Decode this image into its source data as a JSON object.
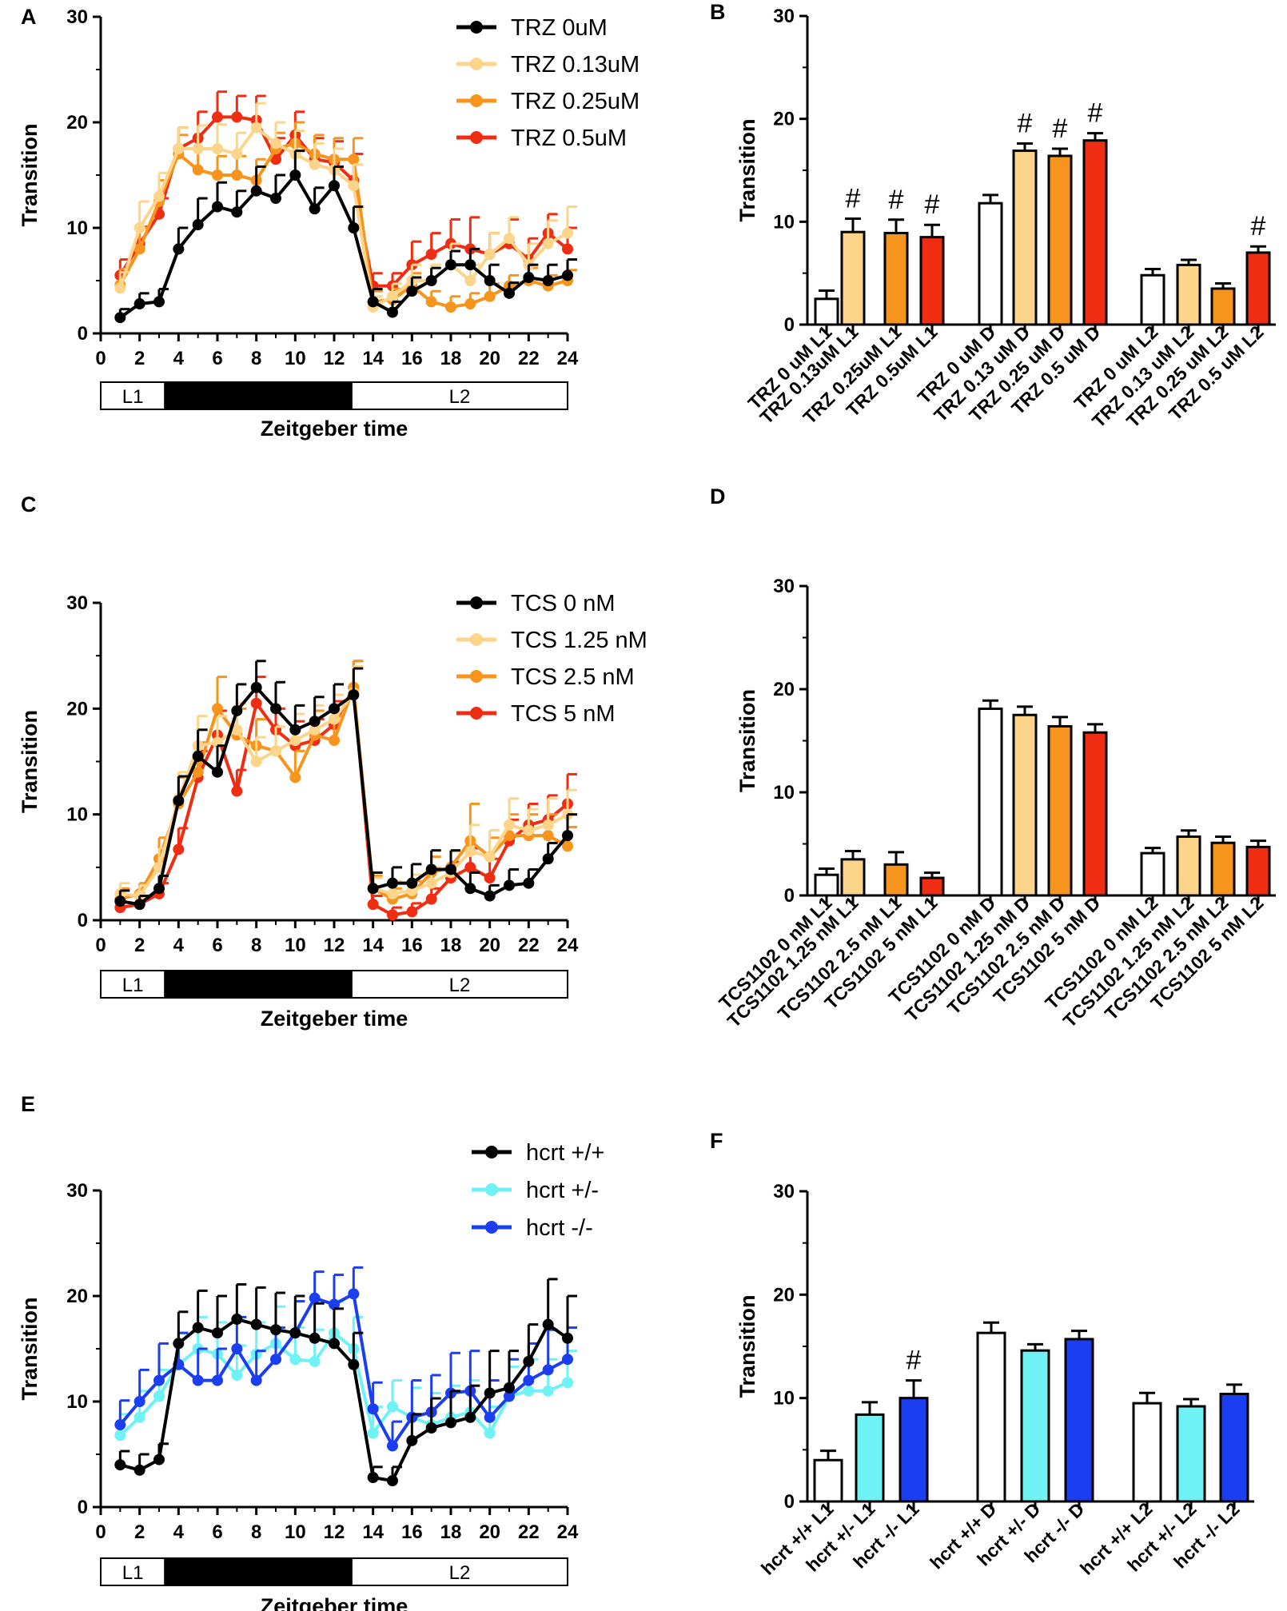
{
  "colors": {
    "black": "#000000",
    "pale": "#fcd58b",
    "orange": "#f7941d",
    "red": "#ee2d12",
    "cyan": "#6ff2f5",
    "blue": "#1a3ef0",
    "white": "#ffffff"
  },
  "line_common": {
    "x_ticks": [
      "0",
      "2",
      "4",
      "6",
      "8",
      "10",
      "12",
      "14",
      "16",
      "18",
      "20",
      "22",
      "24"
    ],
    "y_ticks": [
      "0",
      "10",
      "20",
      "30"
    ],
    "xlim": [
      0,
      24
    ],
    "ylim": [
      0,
      30
    ],
    "ylabel": "Transition",
    "xlabel": "Zeitgeber time",
    "phases": [
      {
        "label": "L1",
        "start": 0,
        "end": 3.3,
        "fill": "white"
      },
      {
        "label": "D",
        "start": 3.3,
        "end": 12.9,
        "fill": "black"
      },
      {
        "label": "L2",
        "start": 12.9,
        "end": 24,
        "fill": "white"
      }
    ]
  },
  "chart_data": [
    {
      "panel": "A",
      "type": "line",
      "xlabel": "Zeitgeber time",
      "ylabel": "Transition",
      "ylim": [
        0,
        30
      ],
      "xlim": [
        0,
        24
      ],
      "x": [
        1,
        2,
        3,
        4,
        5,
        6,
        7,
        8,
        9,
        10,
        11,
        12,
        13,
        14,
        15,
        16,
        17,
        18,
        19,
        20,
        21,
        22,
        23,
        24
      ],
      "series": [
        {
          "name": "TRZ 0.5uM",
          "color": "red",
          "values": [
            5.5,
            8.5,
            11.3,
            17.5,
            18.5,
            20.5,
            20.5,
            20.2,
            16.5,
            18.8,
            16.5,
            16.2,
            14.5,
            4.5,
            4.5,
            6.5,
            7.5,
            8.5,
            8.0,
            7.5,
            8.5,
            7.0,
            9.5,
            8.0
          ],
          "err": [
            1.5,
            1.6,
            1.5,
            2.0,
            2.5,
            2.4,
            2.0,
            2.3,
            2.0,
            2.2,
            2.0,
            2.0,
            2.5,
            1.2,
            1.2,
            2.2,
            2.0,
            2.3,
            3.0,
            2.0,
            2.3,
            2.0,
            1.8,
            2.0
          ]
        },
        {
          "name": "TRZ 0.25uM",
          "color": "orange",
          "values": [
            4.6,
            8.0,
            12.5,
            17.0,
            15.5,
            15.0,
            15.0,
            14.5,
            17.5,
            18.0,
            17.0,
            16.5,
            16.5,
            3.0,
            3.2,
            4.5,
            3.0,
            2.5,
            2.8,
            3.5,
            4.5,
            5.0,
            4.5,
            5.0
          ],
          "err": [
            1.5,
            2.0,
            2.0,
            1.8,
            2.0,
            1.8,
            1.8,
            2.0,
            1.5,
            2.0,
            1.8,
            2.0,
            2.0,
            1.0,
            1.0,
            1.2,
            1.0,
            1.0,
            1.0,
            1.2,
            1.0,
            1.2,
            1.0,
            1.0
          ]
        },
        {
          "name": "TRZ 0.13uM",
          "color": "pale",
          "values": [
            4.3,
            10.0,
            13.0,
            17.5,
            17.5,
            17.5,
            17.0,
            19.5,
            18.0,
            17.0,
            16.0,
            15.5,
            14.0,
            2.5,
            3.5,
            5.0,
            5.0,
            6.5,
            5.0,
            7.5,
            9.0,
            6.5,
            8.5,
            9.5
          ],
          "err": [
            1.5,
            2.5,
            2.2,
            2.0,
            2.2,
            2.3,
            2.0,
            2.3,
            2.0,
            2.2,
            2.0,
            2.0,
            2.0,
            1.0,
            1.2,
            1.5,
            1.5,
            2.0,
            1.5,
            2.0,
            2.0,
            2.0,
            2.2,
            2.5
          ]
        },
        {
          "name": "TRZ 0uM",
          "color": "black",
          "values": [
            1.5,
            2.8,
            3.0,
            8.0,
            10.3,
            12.0,
            11.5,
            13.5,
            12.8,
            15.0,
            11.8,
            14.0,
            10.0,
            3.0,
            2.0,
            4.0,
            5.0,
            6.5,
            6.5,
            5.0,
            3.8,
            5.3,
            5.0,
            5.5
          ],
          "err": [
            0.8,
            1.0,
            1.2,
            2.0,
            2.5,
            2.3,
            2.0,
            2.3,
            2.2,
            2.3,
            2.0,
            1.8,
            2.0,
            1.2,
            1.0,
            1.3,
            1.2,
            1.3,
            1.5,
            1.5,
            1.0,
            1.2,
            1.5,
            1.5
          ]
        }
      ],
      "legend": [
        "TRZ 0uM",
        "TRZ 0.13uM",
        "TRZ 0.25uM",
        "TRZ 0.5uM"
      ],
      "legend_colors": [
        "black",
        "pale",
        "orange",
        "red"
      ]
    },
    {
      "panel": "B",
      "type": "bar",
      "ylabel": "Transition",
      "ylim": [
        0,
        30
      ],
      "y_ticks": [
        "0",
        "10",
        "20",
        "30"
      ],
      "categories": [
        "TRZ 0 uM L1",
        "TRZ 0.13uM L1",
        "TRZ 0.25uM L1",
        "TRZ 0.5uM L1",
        "TRZ 0 uM D",
        "TRZ 0.13 uM D",
        "TRZ 0.25 uM D",
        "TRZ 0.5 uM D",
        "TRZ 0 uM L2",
        "TRZ 0.13 uM L2",
        "TRZ 0.25 uM L2",
        "TRZ 0.5 uM L2"
      ],
      "values": [
        2.5,
        9.0,
        8.9,
        8.5,
        11.8,
        16.9,
        16.4,
        17.9,
        4.8,
        5.8,
        3.5,
        7.0
      ],
      "err": [
        0.8,
        1.3,
        1.3,
        1.2,
        0.8,
        0.7,
        0.7,
        0.7,
        0.6,
        0.5,
        0.5,
        0.6
      ],
      "colors": [
        "white",
        "pale",
        "orange",
        "red",
        "white",
        "pale",
        "orange",
        "red",
        "white",
        "pale",
        "orange",
        "red"
      ],
      "annotations": [
        "",
        "#",
        "#",
        "#",
        "",
        "#",
        "#",
        "#",
        "",
        "",
        "",
        "#"
      ]
    },
    {
      "panel": "C",
      "type": "line",
      "xlabel": "Zeitgeber time",
      "ylabel": "Transition",
      "ylim": [
        0,
        30
      ],
      "xlim": [
        0,
        24
      ],
      "x": [
        1,
        2,
        3,
        4,
        5,
        6,
        7,
        8,
        9,
        10,
        11,
        12,
        13,
        14,
        15,
        16,
        17,
        18,
        19,
        20,
        21,
        22,
        23,
        24
      ],
      "series": [
        {
          "name": "TCS 5 nM",
          "color": "red",
          "values": [
            1.2,
            1.5,
            2.5,
            6.7,
            13.5,
            17.5,
            12.2,
            20.5,
            18.0,
            16.5,
            17.0,
            18.5,
            22.0,
            1.5,
            0.5,
            0.8,
            2.0,
            4.0,
            5.0,
            4.0,
            7.5,
            9.0,
            9.5,
            11.0
          ],
          "err": [
            0.5,
            0.8,
            1.0,
            2.0,
            2.5,
            2.3,
            2.0,
            2.5,
            2.0,
            2.3,
            2.0,
            2.2,
            2.5,
            0.8,
            0.7,
            0.8,
            1.0,
            1.5,
            1.8,
            1.8,
            2.0,
            2.0,
            2.3,
            2.8
          ]
        },
        {
          "name": "TCS 2.5 nM",
          "color": "orange",
          "values": [
            2.0,
            2.5,
            5.8,
            11.0,
            14.0,
            20.0,
            17.5,
            16.5,
            16.0,
            13.5,
            17.5,
            17.0,
            22.0,
            3.0,
            2.0,
            2.5,
            4.5,
            5.0,
            7.5,
            6.0,
            8.0,
            8.0,
            8.0,
            7.0
          ],
          "err": [
            1.0,
            1.0,
            2.0,
            2.5,
            2.8,
            3.0,
            2.5,
            2.5,
            2.3,
            2.5,
            2.3,
            2.3,
            2.5,
            1.2,
            1.0,
            1.2,
            1.5,
            1.5,
            3.5,
            1.8,
            2.0,
            2.0,
            2.0,
            1.8
          ]
        },
        {
          "name": "TCS 1.25 nM",
          "color": "pale",
          "values": [
            2.5,
            2.3,
            5.0,
            11.5,
            16.5,
            16.8,
            18.0,
            15.0,
            16.0,
            17.0,
            18.0,
            19.0,
            21.5,
            3.0,
            2.5,
            2.8,
            3.5,
            4.5,
            6.5,
            6.0,
            9.0,
            8.5,
            9.0,
            10.0
          ],
          "err": [
            1.0,
            1.0,
            1.8,
            2.5,
            2.8,
            2.5,
            2.5,
            2.3,
            2.3,
            2.5,
            2.3,
            2.3,
            2.5,
            1.0,
            1.2,
            1.5,
            1.5,
            2.0,
            2.5,
            2.5,
            2.5,
            2.0,
            2.5,
            2.3
          ]
        },
        {
          "name": "TCS 0 nM",
          "color": "black",
          "values": [
            1.8,
            1.5,
            3.0,
            11.3,
            15.5,
            14.0,
            19.8,
            22.0,
            20.0,
            18.0,
            18.8,
            20.0,
            21.3,
            3.0,
            3.5,
            3.5,
            4.8,
            4.8,
            3.0,
            2.3,
            3.3,
            3.5,
            5.8,
            8.0
          ],
          "err": [
            1.0,
            0.8,
            1.2,
            2.3,
            2.5,
            2.5,
            2.5,
            2.5,
            2.5,
            2.3,
            2.3,
            2.3,
            2.5,
            1.5,
            1.5,
            1.8,
            1.8,
            1.8,
            1.5,
            1.0,
            1.5,
            1.3,
            1.5,
            2.0
          ]
        }
      ],
      "legend": [
        "TCS 0 nM",
        "TCS 1.25 nM",
        "TCS 2.5 nM",
        "TCS 5 nM"
      ],
      "legend_colors": [
        "black",
        "pale",
        "orange",
        "red"
      ]
    },
    {
      "panel": "D",
      "type": "bar",
      "ylabel": "Transition",
      "ylim": [
        0,
        30
      ],
      "y_ticks": [
        "0",
        "10",
        "20",
        "30"
      ],
      "categories": [
        "TCS1102 0 nM L1",
        "TCS1102 1.25 nM L1",
        "TCS1102 2.5 nM L1",
        "TCS1102 5 nM L1",
        "TCS1102 0 nM D",
        "TCS1102 1.25 nM D",
        "TCS1102 2.5 nM D",
        "TCS1102 5 nM D",
        "TCS1102 0 nM L2",
        "TCS1102 1.25 nM L2",
        "TCS1102 2.5 nM L2",
        "TCS1102 5 nM L2"
      ],
      "values": [
        2.0,
        3.5,
        3.0,
        1.7,
        18.1,
        17.5,
        16.4,
        15.8,
        4.1,
        5.7,
        5.1,
        4.7
      ],
      "err": [
        0.6,
        0.8,
        1.2,
        0.5,
        0.8,
        0.8,
        0.9,
        0.8,
        0.5,
        0.6,
        0.6,
        0.6
      ],
      "colors": [
        "white",
        "pale",
        "orange",
        "red",
        "white",
        "pale",
        "orange",
        "red",
        "white",
        "pale",
        "orange",
        "red"
      ],
      "annotations": [
        "",
        "",
        "",
        "",
        "",
        "",
        "",
        "",
        "",
        "",
        "",
        ""
      ]
    },
    {
      "panel": "E",
      "type": "line",
      "xlabel": "Zeitgeber time",
      "ylabel": "Transition",
      "ylim": [
        0,
        30
      ],
      "xlim": [
        0,
        24
      ],
      "x": [
        1,
        2,
        3,
        4,
        5,
        6,
        7,
        8,
        9,
        10,
        11,
        12,
        13,
        14,
        15,
        16,
        17,
        18,
        19,
        20,
        21,
        22,
        23,
        24
      ],
      "series": [
        {
          "name": "hcrt +/-",
          "color": "cyan",
          "values": [
            6.8,
            8.5,
            10.5,
            13.5,
            15.0,
            14.5,
            12.5,
            14.5,
            15.5,
            14.0,
            13.8,
            16.5,
            15.0,
            7.0,
            9.5,
            8.5,
            7.8,
            8.5,
            9.0,
            7.0,
            10.5,
            11.0,
            11.0,
            11.8
          ],
          "err": [
            2.0,
            2.5,
            2.5,
            3.0,
            3.0,
            3.0,
            2.8,
            3.0,
            3.5,
            3.0,
            3.0,
            3.0,
            3.0,
            2.5,
            2.5,
            2.8,
            3.0,
            3.0,
            3.0,
            2.5,
            2.8,
            3.0,
            3.0,
            3.0
          ]
        },
        {
          "name": "hcrt -/-",
          "color": "blue",
          "values": [
            7.8,
            10.0,
            12.0,
            13.5,
            12.0,
            12.0,
            15.0,
            12.0,
            14.0,
            16.5,
            19.8,
            19.2,
            20.2,
            9.3,
            5.8,
            8.5,
            9.0,
            10.8,
            11.0,
            8.5,
            10.5,
            12.0,
            13.0,
            14.0
          ],
          "err": [
            2.3,
            3.0,
            3.5,
            3.0,
            3.0,
            3.0,
            3.0,
            2.8,
            3.0,
            3.0,
            2.5,
            2.8,
            2.5,
            2.5,
            2.3,
            3.5,
            3.5,
            3.8,
            3.8,
            3.5,
            3.5,
            3.5,
            3.8,
            3.0
          ]
        },
        {
          "name": "hcrt +/+",
          "color": "black",
          "values": [
            4.0,
            3.5,
            4.5,
            15.5,
            17.0,
            16.5,
            17.8,
            17.3,
            16.8,
            16.5,
            16.0,
            15.5,
            13.5,
            2.8,
            2.5,
            6.3,
            7.5,
            8.0,
            8.5,
            10.8,
            11.3,
            13.8,
            17.3,
            16.0
          ],
          "err": [
            1.3,
            1.5,
            1.5,
            3.0,
            3.5,
            3.5,
            3.3,
            3.5,
            3.5,
            3.5,
            3.3,
            3.3,
            3.0,
            1.0,
            1.3,
            2.5,
            2.8,
            3.0,
            3.0,
            4.0,
            3.5,
            3.5,
            4.3,
            4.0
          ]
        }
      ],
      "legend": [
        "hcrt +/+",
        "hcrt +/-",
        "hcrt -/-"
      ],
      "legend_colors": [
        "black",
        "cyan",
        "blue"
      ]
    },
    {
      "panel": "F",
      "type": "bar",
      "ylabel": "Transition",
      "ylim": [
        0,
        30
      ],
      "y_ticks": [
        "0",
        "10",
        "20",
        "30"
      ],
      "categories": [
        "hcrt +/+ L1",
        "hcrt +/- L1",
        "hcrt -/- L1",
        "hcrt +/+ D",
        "hcrt +/- D",
        "hcrt -/- D",
        "hcrt +/+ L2",
        "hcrt +/- L2",
        "hcrt -/- L2"
      ],
      "values": [
        4.0,
        8.4,
        10.0,
        16.3,
        14.6,
        15.7,
        9.5,
        9.2,
        10.4
      ],
      "err": [
        0.9,
        1.2,
        1.7,
        1.0,
        0.6,
        0.8,
        1.0,
        0.7,
        0.9
      ],
      "colors": [
        "white",
        "cyan",
        "blue",
        "white",
        "cyan",
        "blue",
        "white",
        "cyan",
        "blue"
      ],
      "annotations": [
        "",
        "",
        "#",
        "",
        "",
        "",
        "",
        "",
        ""
      ]
    }
  ]
}
